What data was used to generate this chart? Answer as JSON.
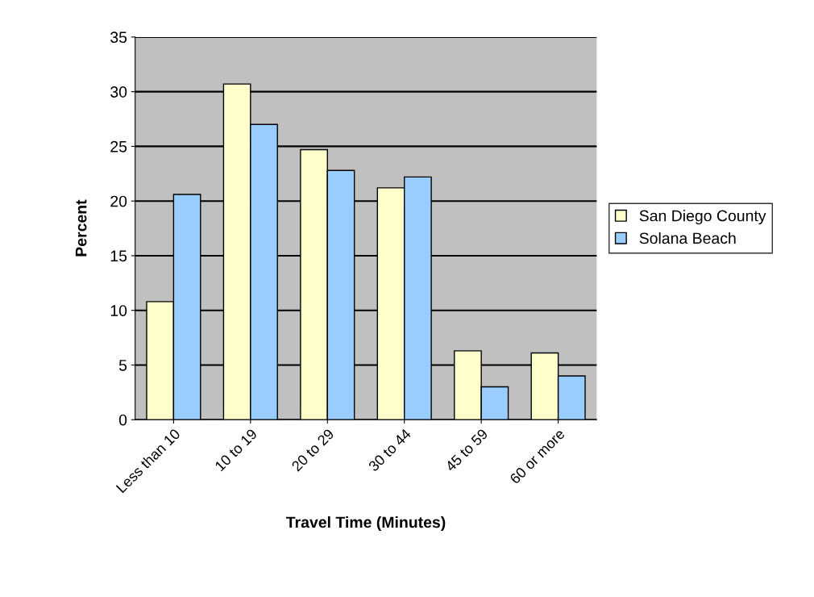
{
  "chart_data": {
    "type": "bar",
    "xlabel": "Travel Time (Minutes)",
    "ylabel": "Percent",
    "categories": [
      "Less than 10",
      "10 to 19",
      "20 to 29",
      "30 to 44",
      "45 to 59",
      "60 or more"
    ],
    "series": [
      {
        "name": "San Diego County",
        "color": "#ffffcc",
        "values": [
          10.8,
          30.7,
          24.7,
          21.2,
          6.3,
          6.1
        ]
      },
      {
        "name": "Solana Beach",
        "color": "#99ccff",
        "values": [
          20.6,
          27.0,
          22.8,
          22.2,
          3.0,
          4.0
        ]
      }
    ],
    "ylim": [
      0,
      35
    ],
    "yticks": [
      0,
      5,
      10,
      15,
      20,
      25,
      30,
      35
    ],
    "grid": "y",
    "legend": "right"
  }
}
